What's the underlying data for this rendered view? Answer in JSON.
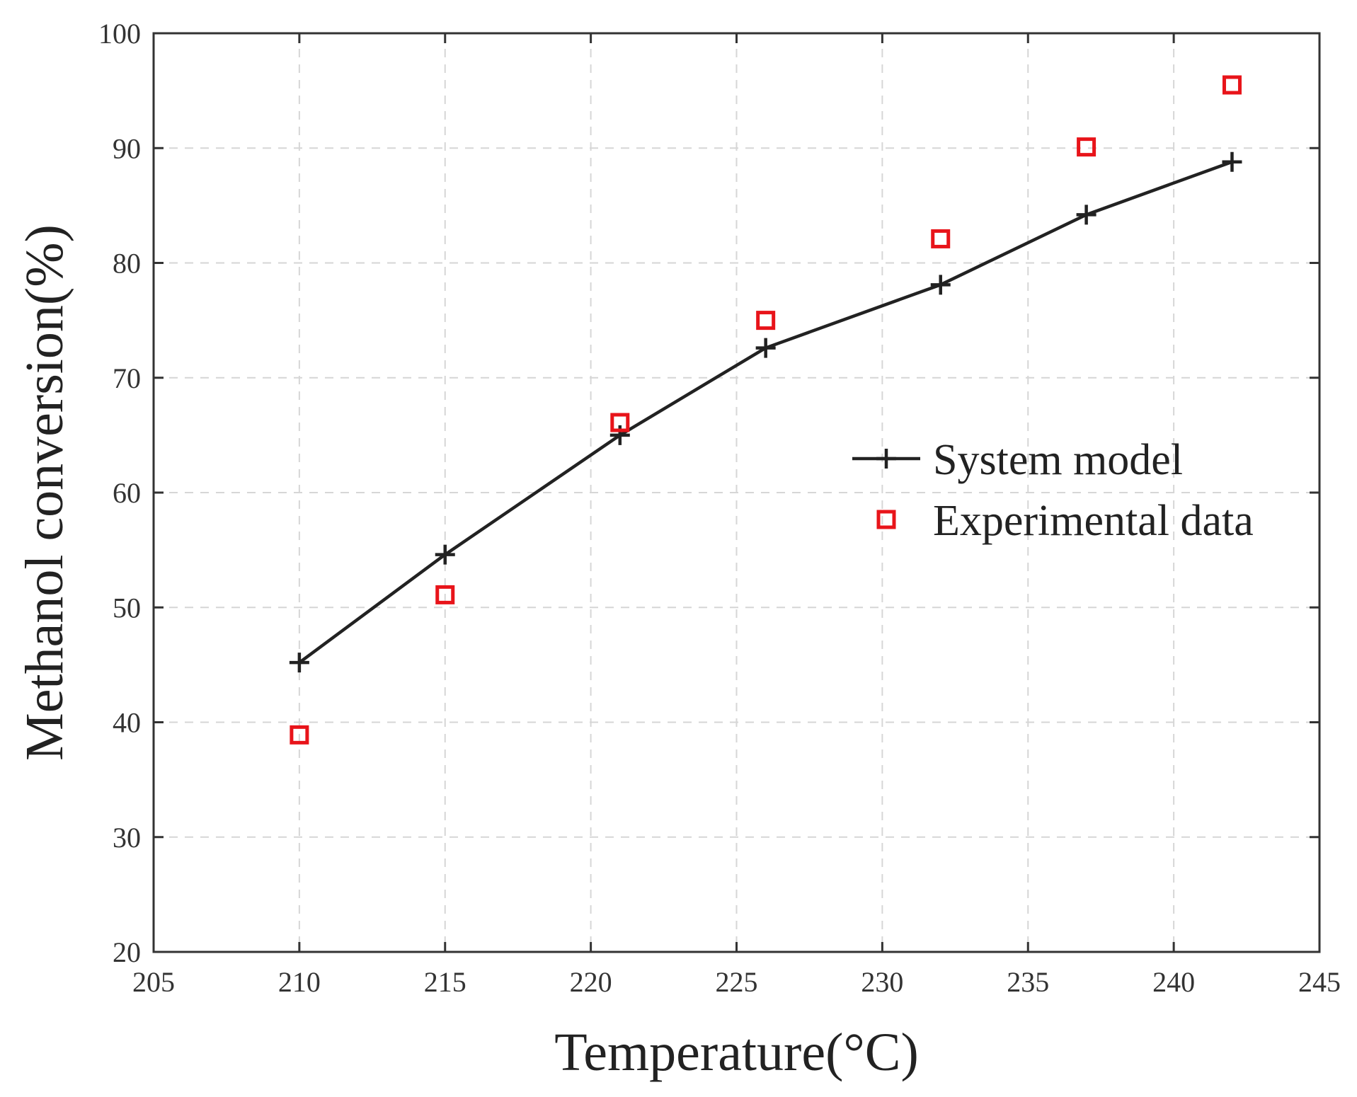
{
  "chart_data": {
    "type": "line",
    "title": "",
    "xlabel": "Temperature(°C)",
    "ylabel": "Methanol conversion(%)",
    "xlim": [
      205,
      245
    ],
    "ylim": [
      20,
      100
    ],
    "xticks": [
      205,
      210,
      215,
      220,
      225,
      230,
      235,
      240,
      245
    ],
    "yticks": [
      20,
      30,
      40,
      50,
      60,
      70,
      80,
      90,
      100
    ],
    "grid": true,
    "legend_position": "right",
    "series": [
      {
        "name": "System model",
        "style": "line-plus",
        "color": "#222222",
        "x": [
          210,
          215,
          221,
          226,
          232,
          237,
          242
        ],
        "y": [
          45.2,
          54.6,
          65.0,
          72.6,
          78.1,
          84.2,
          88.8
        ]
      },
      {
        "name": "Experimental data",
        "style": "square-marker",
        "color": "#e8141a",
        "x": [
          210,
          215,
          221,
          226,
          232,
          237,
          242
        ],
        "y": [
          38.9,
          51.1,
          66.1,
          75.0,
          82.1,
          90.1,
          95.5
        ]
      }
    ]
  }
}
